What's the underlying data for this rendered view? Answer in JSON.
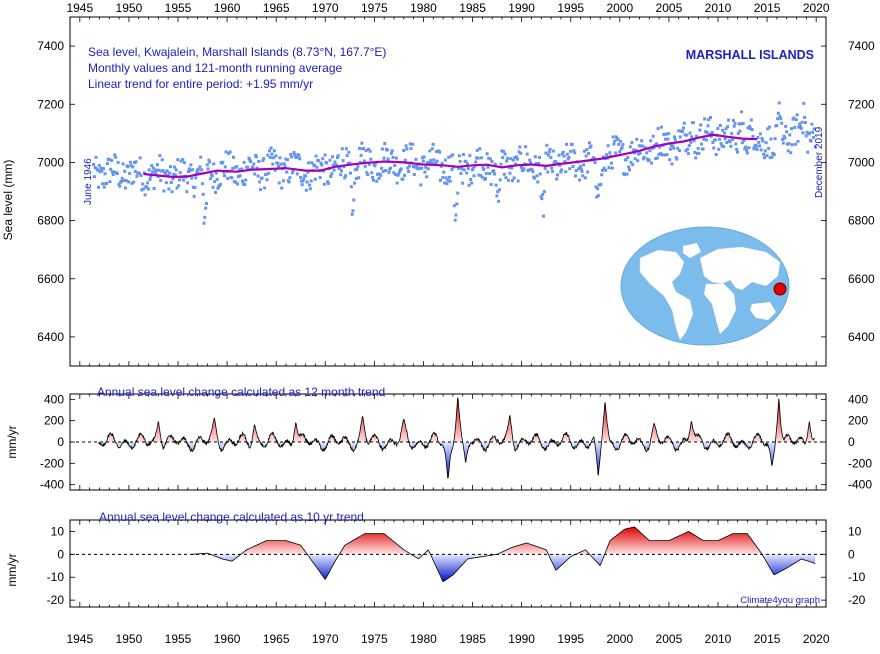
{
  "chart_data": [
    {
      "type": "scatter",
      "panel": "top",
      "title_lines": [
        "Sea level, Kwajalein, Marshall Islands (8.73°N, 167.7°E)",
        "Monthly values and 121-month running average",
        "Linear trend for entire period: +1.95 mm/yr"
      ],
      "region_label": "MARSHALL ISLANDS",
      "ylabel": "Sea level (mm)",
      "start_label": "June 1946",
      "end_label": "December 2019",
      "xlim": [
        1944,
        2021
      ],
      "ylim": [
        6300,
        7500
      ],
      "xticks": [
        "1945",
        "1950",
        "1955",
        "1960",
        "1965",
        "1970",
        "1975",
        "1980",
        "1985",
        "1990",
        "1995",
        "2000",
        "2005",
        "2010",
        "2015",
        "2020"
      ],
      "yticks": [
        "6400",
        "6600",
        "6800",
        "7000",
        "7200",
        "7400"
      ],
      "series": [
        {
          "kind": "monthly",
          "color": "#6495ed",
          "x_range": [
            1946.4,
            2019.9
          ],
          "note_values": "monthly points scatter about the running average"
        },
        {
          "kind": "running-average",
          "color": "#a000c0",
          "points": [
            [
              1951.5,
              6960
            ],
            [
              1953,
              6955
            ],
            [
              1954.5,
              6950
            ],
            [
              1956,
              6952
            ],
            [
              1957.5,
              6962
            ],
            [
              1959,
              6972
            ],
            [
              1961,
              6968
            ],
            [
              1962.5,
              6975
            ],
            [
              1964,
              6977
            ],
            [
              1966,
              6980
            ],
            [
              1968,
              6972
            ],
            [
              1969.5,
              6972
            ],
            [
              1971,
              6985
            ],
            [
              1972.5,
              6992
            ],
            [
              1974,
              6998
            ],
            [
              1976,
              7003
            ],
            [
              1978,
              7000
            ],
            [
              1980,
              6993
            ],
            [
              1982,
              6990
            ],
            [
              1983.5,
              6985
            ],
            [
              1985,
              6990
            ],
            [
              1986.5,
              6992
            ],
            [
              1988,
              6983
            ],
            [
              1989.5,
              6990
            ],
            [
              1991,
              6993
            ],
            [
              1992.5,
              6988
            ],
            [
              1994,
              6995
            ],
            [
              1996,
              7003
            ],
            [
              1998,
              7012
            ],
            [
              2000,
              7025
            ],
            [
              2002,
              7040
            ],
            [
              2003.5,
              7055
            ],
            [
              2005,
              7065
            ],
            [
              2006.5,
              7072
            ],
            [
              2008,
              7085
            ],
            [
              2009.5,
              7095
            ],
            [
              2011,
              7088
            ],
            [
              2012.5,
              7082
            ],
            [
              2014,
              7080
            ]
          ]
        }
      ]
    },
    {
      "type": "area",
      "panel": "middle",
      "title": "Annual sea level change calculated as 12 month trend",
      "ylabel": "mm/yr",
      "xlim": [
        1944,
        2021
      ],
      "ylim": [
        -450,
        450
      ],
      "yticks": [
        "400",
        "200",
        "0",
        "-200",
        "-400"
      ],
      "x_range": [
        1946.9,
        2019.9
      ],
      "peaks": [
        [
          1953.0,
          200
        ],
        [
          1958.7,
          230
        ],
        [
          1962.8,
          170
        ],
        [
          1967.0,
          190
        ],
        [
          1973.8,
          250
        ],
        [
          1978.0,
          220
        ],
        [
          1983.5,
          440
        ],
        [
          1984.3,
          -200
        ],
        [
          1982.5,
          -360
        ],
        [
          1988.8,
          260
        ],
        [
          1997.8,
          -330
        ],
        [
          1998.5,
          390
        ],
        [
          2003.5,
          180
        ],
        [
          2007.3,
          200
        ],
        [
          2016.2,
          420
        ],
        [
          2015.5,
          -230
        ],
        [
          2019.3,
          200
        ]
      ]
    },
    {
      "type": "area",
      "panel": "bottom",
      "title": "Annual sea level change calculated as 10 yr trend",
      "ylabel": "mm/yr",
      "xlim": [
        1944,
        2021
      ],
      "ylim": [
        -23,
        15
      ],
      "yticks": [
        "10",
        "0",
        "-10",
        "-20"
      ],
      "credit": "Climate4you graph",
      "points": [
        [
          1956.4,
          0
        ],
        [
          1958,
          0.5
        ],
        [
          1959.5,
          -2
        ],
        [
          1960.5,
          -3
        ],
        [
          1962,
          2
        ],
        [
          1964,
          6
        ],
        [
          1966,
          6
        ],
        [
          1967.5,
          4
        ],
        [
          1968.5,
          -2
        ],
        [
          1970,
          -11
        ],
        [
          1971,
          -3
        ],
        [
          1972,
          4
        ],
        [
          1974,
          9
        ],
        [
          1976,
          9
        ],
        [
          1978,
          2
        ],
        [
          1979.5,
          -2
        ],
        [
          1980.5,
          2
        ],
        [
          1982,
          -12
        ],
        [
          1983,
          -9
        ],
        [
          1984.5,
          -2
        ],
        [
          1986,
          -1
        ],
        [
          1987.5,
          0
        ],
        [
          1989,
          3
        ],
        [
          1990.5,
          5
        ],
        [
          1992.5,
          2
        ],
        [
          1993.5,
          -7
        ],
        [
          1995,
          -1
        ],
        [
          1996.5,
          2
        ],
        [
          1998,
          -5
        ],
        [
          1999,
          6
        ],
        [
          2000.5,
          11
        ],
        [
          2001.5,
          12
        ],
        [
          2003,
          6
        ],
        [
          2005,
          6
        ],
        [
          2007,
          10
        ],
        [
          2008.5,
          6
        ],
        [
          2010,
          6
        ],
        [
          2011.5,
          9
        ],
        [
          2013,
          9
        ],
        [
          2014.5,
          0
        ],
        [
          2015.7,
          -9
        ],
        [
          2017,
          -6
        ],
        [
          2018.5,
          -2
        ],
        [
          2019.9,
          -4
        ]
      ]
    }
  ]
}
